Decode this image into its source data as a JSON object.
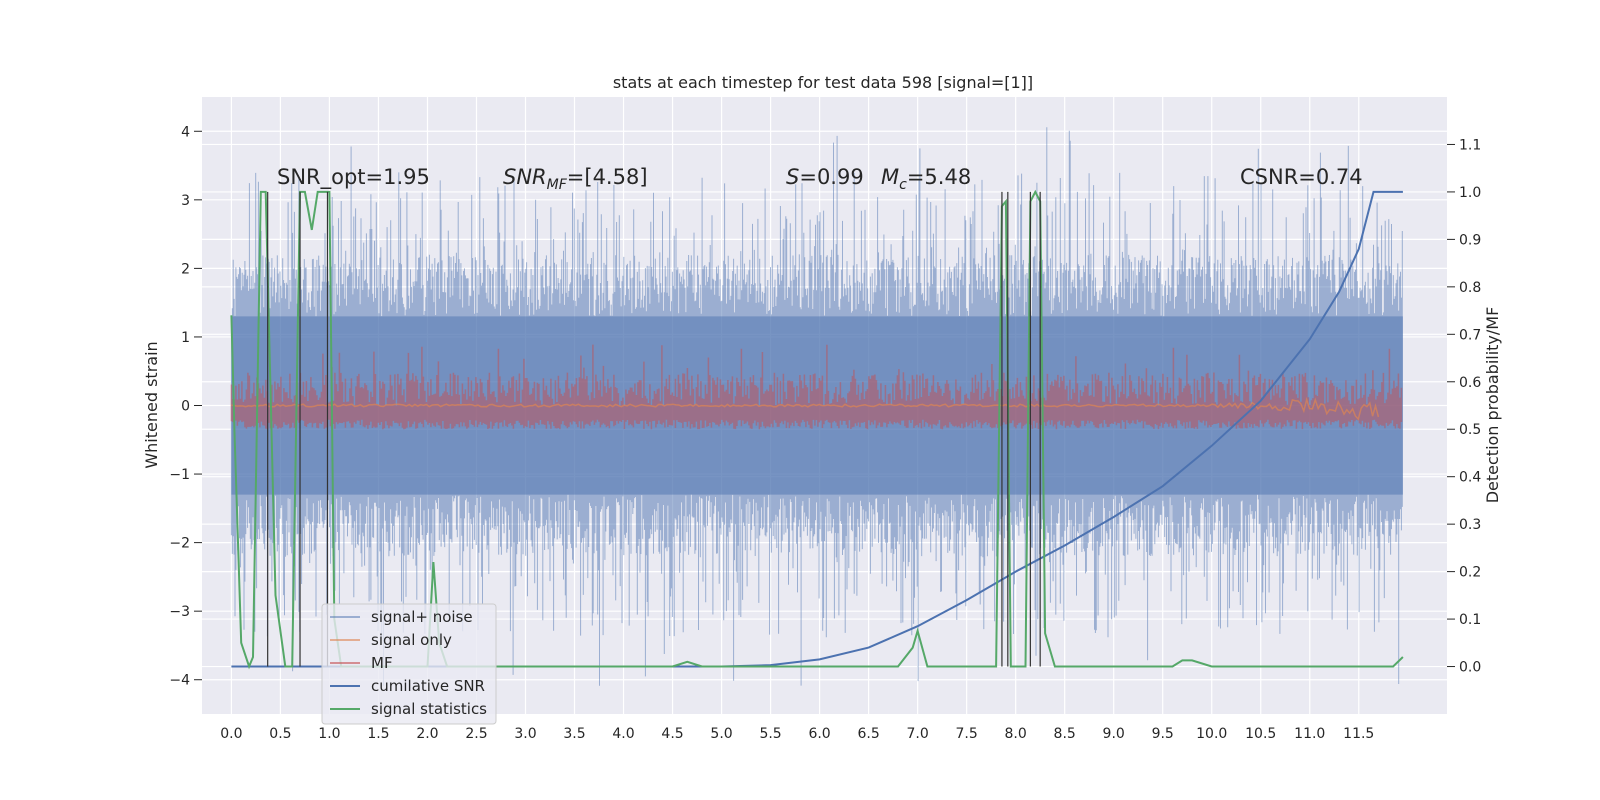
{
  "chart_data": {
    "type": "line",
    "title": "stats at each timestep for test data 598 [signal=[1]]",
    "xlabel": "",
    "ylabel": "Whitened strain",
    "y2label": "Detection probability/MF",
    "xlim": [
      -0.3,
      12.4
    ],
    "ylim": [
      -4.5,
      4.5
    ],
    "y2lim": [
      -0.1,
      1.2
    ],
    "xticks": [
      "0.0",
      "0.5",
      "1.0",
      "1.5",
      "2.0",
      "2.5",
      "3.0",
      "3.5",
      "4.0",
      "4.5",
      "5.0",
      "5.5",
      "6.0",
      "6.5",
      "7.0",
      "7.5",
      "8.0",
      "8.5",
      "9.0",
      "9.5",
      "10.0",
      "10.5",
      "11.0",
      "11.5"
    ],
    "yticks": [
      "4",
      "3",
      "2",
      "1",
      "0",
      "−1",
      "−2",
      "−3",
      "−4"
    ],
    "y2ticks": [
      "1.1",
      "1.0",
      "0.9",
      "0.8",
      "0.7",
      "0.6",
      "0.5",
      "0.4",
      "0.3",
      "0.2",
      "0.1",
      "0.0"
    ],
    "annotations": {
      "snr_opt": "SNR_opt=1.95",
      "snr_mf_prefix": "SNR",
      "snr_mf_sub": "MF",
      "snr_mf_value": "=[4.58]",
      "s_symbol": "S",
      "s_value": "=0.99",
      "mc_symbol": "M",
      "mc_sub": "c",
      "mc_value": "=5.48",
      "csnr": "CSNR=0.74"
    },
    "grid": true,
    "legend_position": "lower-left",
    "series": [
      {
        "name": "signal+ noise",
        "color": "#4c72b0",
        "style": "noise band, approx. ±1.3 dense with spikes to about ±4.1",
        "x_range": [
          0.0,
          11.95
        ],
        "y_range": [
          -4.1,
          4.1
        ]
      },
      {
        "name": "signal only",
        "color": "#dd8452",
        "style": "near zero, slight drift to about -0.1 near x=11.6",
        "x_range": [
          0.0,
          11.7
        ],
        "y_range": [
          -0.15,
          0.1
        ]
      },
      {
        "name": "MF",
        "color": "#c44e52",
        "style": "band between 0 and about 0.7 (secondary axis scale)",
        "x_range": [
          0.0,
          11.95
        ],
        "y_range": [
          0.0,
          1.0
        ]
      },
      {
        "name": "cumilative SNR",
        "color": "#4c72b0",
        "x": [
          0.0,
          0.5,
          1.0,
          2.0,
          3.0,
          4.0,
          5.0,
          5.5,
          6.0,
          6.5,
          7.0,
          7.5,
          8.0,
          8.5,
          9.0,
          9.5,
          10.0,
          10.5,
          11.0,
          11.3,
          11.5,
          11.65,
          11.95
        ],
        "y": [
          0.0,
          0.0,
          0.0,
          0.0,
          0.0,
          0.0,
          0.0,
          0.003,
          0.015,
          0.04,
          0.085,
          0.14,
          0.2,
          0.255,
          0.315,
          0.38,
          0.465,
          0.56,
          0.69,
          0.79,
          0.88,
          1.0,
          1.0
        ]
      },
      {
        "name": "signal statistics",
        "color": "#55a868",
        "x": [
          0.0,
          0.03,
          0.1,
          0.18,
          0.22,
          0.3,
          0.35,
          0.45,
          0.55,
          0.62,
          0.7,
          0.75,
          0.82,
          0.88,
          0.95,
          1.0,
          1.05,
          1.12,
          1.2,
          1.3,
          2.0,
          2.06,
          2.12,
          2.2,
          2.5,
          4.5,
          4.65,
          4.8,
          6.8,
          6.95,
          7.0,
          7.1,
          7.3,
          7.8,
          7.86,
          7.9,
          7.95,
          8.0,
          8.1,
          8.15,
          8.2,
          8.25,
          8.3,
          8.4,
          9.6,
          9.7,
          9.8,
          10.0,
          10.5,
          11.0,
          11.5,
          11.85,
          11.95
        ],
        "y": [
          0.74,
          0.5,
          0.05,
          0.0,
          0.02,
          1.0,
          1.0,
          0.15,
          0.0,
          0.0,
          1.0,
          1.0,
          0.92,
          1.0,
          1.0,
          1.0,
          0.1,
          0.0,
          0.0,
          0.0,
          0.0,
          0.22,
          0.05,
          0.0,
          0.0,
          0.0,
          0.01,
          0.0,
          0.0,
          0.04,
          0.075,
          0.0,
          0.0,
          0.0,
          0.97,
          0.98,
          0.0,
          0.0,
          0.0,
          0.98,
          1.0,
          0.98,
          0.07,
          0.0,
          0.0,
          0.013,
          0.013,
          0.0,
          0.0,
          0.0,
          0.0,
          0.0,
          0.02
        ]
      },
      {
        "name": "detection markers",
        "color": "#333333",
        "x": [
          0.37,
          0.7,
          0.98,
          7.86,
          7.92,
          8.15,
          8.25
        ],
        "y_range": [
          0.0,
          1.0
        ]
      }
    ],
    "legend": [
      "signal+ noise",
      "signal only",
      "MF",
      "cumilative SNR",
      "signal statistics"
    ]
  }
}
